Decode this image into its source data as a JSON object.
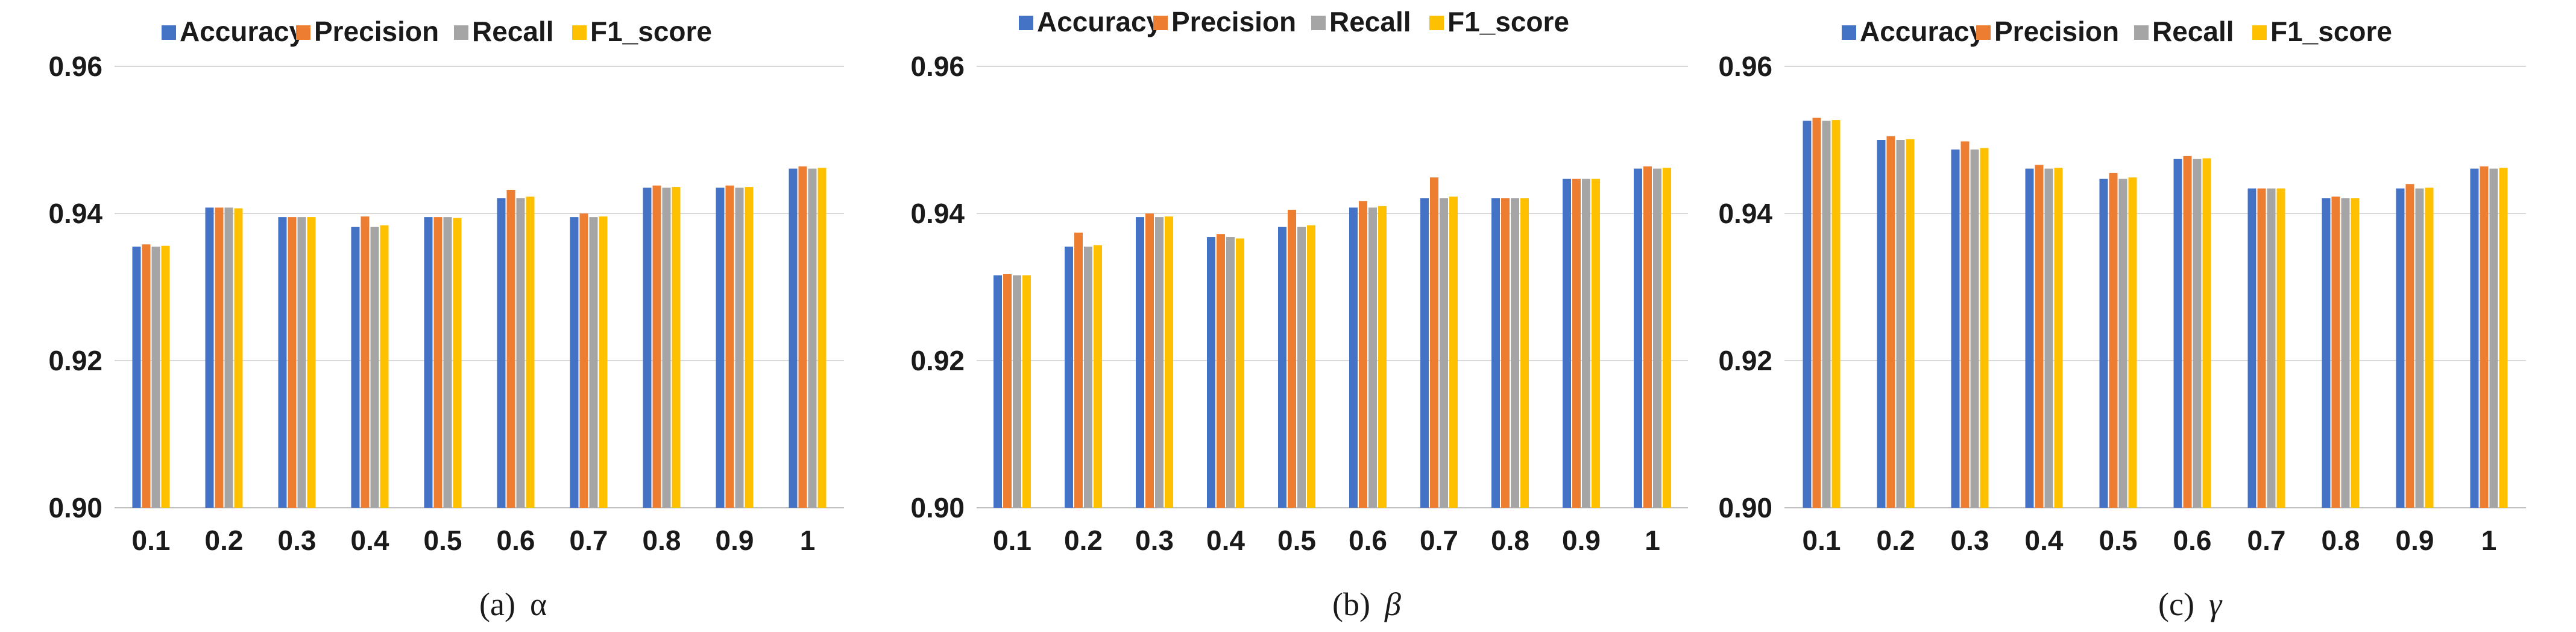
{
  "colors": {
    "Accuracy": "#4472C4",
    "Precision": "#ED7D31",
    "Recall": "#A5A5A5",
    "F1_score": "#FFC000"
  },
  "chart_data": [
    {
      "type": "bar",
      "caption_prefix": "(a)",
      "caption_symbol": "α",
      "categories": [
        "0.1",
        "0.2",
        "0.3",
        "0.4",
        "0.5",
        "0.6",
        "0.7",
        "0.8",
        "0.9",
        "1"
      ],
      "ylim": [
        0.9,
        0.96
      ],
      "yticks": [
        "0.90",
        "0.92",
        "0.94",
        "0.96"
      ],
      "series": [
        {
          "name": "Accuracy",
          "values": [
            0.9355,
            0.9408,
            0.9395,
            0.9382,
            0.9395,
            0.9421,
            0.9395,
            0.9435,
            0.9435,
            0.9461
          ]
        },
        {
          "name": "Precision",
          "values": [
            0.9358,
            0.9408,
            0.9395,
            0.9396,
            0.9395,
            0.9432,
            0.94,
            0.9438,
            0.9438,
            0.9464
          ]
        },
        {
          "name": "Recall",
          "values": [
            0.9355,
            0.9408,
            0.9395,
            0.9382,
            0.9395,
            0.9421,
            0.9395,
            0.9435,
            0.9435,
            0.9461
          ]
        },
        {
          "name": "F1_score",
          "values": [
            0.9356,
            0.9407,
            0.9395,
            0.9384,
            0.9394,
            0.9423,
            0.9396,
            0.9436,
            0.9436,
            0.9462
          ]
        }
      ]
    },
    {
      "type": "bar",
      "caption_prefix": "(b)",
      "caption_symbol": "β",
      "categories": [
        "0.1",
        "0.2",
        "0.3",
        "0.4",
        "0.5",
        "0.6",
        "0.7",
        "0.8",
        "0.9",
        "1"
      ],
      "ylim": [
        0.9,
        0.96
      ],
      "yticks": [
        "0.90",
        "0.92",
        "0.94",
        "0.96"
      ],
      "series": [
        {
          "name": "Accuracy",
          "values": [
            0.9316,
            0.9355,
            0.9395,
            0.9368,
            0.9382,
            0.9408,
            0.9421,
            0.9421,
            0.9447,
            0.9461
          ]
        },
        {
          "name": "Precision",
          "values": [
            0.9318,
            0.9374,
            0.94,
            0.9372,
            0.9405,
            0.9417,
            0.9449,
            0.9421,
            0.9447,
            0.9464
          ]
        },
        {
          "name": "Recall",
          "values": [
            0.9316,
            0.9355,
            0.9395,
            0.9368,
            0.9382,
            0.9408,
            0.9421,
            0.9421,
            0.9447,
            0.9461
          ]
        },
        {
          "name": "F1_score",
          "values": [
            0.9316,
            0.9357,
            0.9396,
            0.9366,
            0.9384,
            0.941,
            0.9423,
            0.9421,
            0.9447,
            0.9462
          ]
        }
      ]
    },
    {
      "type": "bar",
      "caption_prefix": "(c)",
      "caption_symbol": "γ",
      "categories": [
        "0.1",
        "0.2",
        "0.3",
        "0.4",
        "0.5",
        "0.6",
        "0.7",
        "0.8",
        "0.9",
        "1"
      ],
      "ylim": [
        0.9,
        0.96
      ],
      "yticks": [
        "0.90",
        "0.92",
        "0.94",
        "0.96"
      ],
      "series": [
        {
          "name": "Accuracy",
          "values": [
            0.9526,
            0.95,
            0.9487,
            0.9461,
            0.9447,
            0.9474,
            0.9434,
            0.9421,
            0.9434,
            0.9461
          ]
        },
        {
          "name": "Precision",
          "values": [
            0.953,
            0.9505,
            0.9498,
            0.9466,
            0.9455,
            0.9478,
            0.9434,
            0.9423,
            0.944,
            0.9464
          ]
        },
        {
          "name": "Recall",
          "values": [
            0.9526,
            0.95,
            0.9487,
            0.9461,
            0.9447,
            0.9474,
            0.9434,
            0.9421,
            0.9434,
            0.9461
          ]
        },
        {
          "name": "F1_score",
          "values": [
            0.9527,
            0.9501,
            0.9489,
            0.9462,
            0.9449,
            0.9475,
            0.9434,
            0.9421,
            0.9435,
            0.9462
          ]
        }
      ]
    }
  ]
}
